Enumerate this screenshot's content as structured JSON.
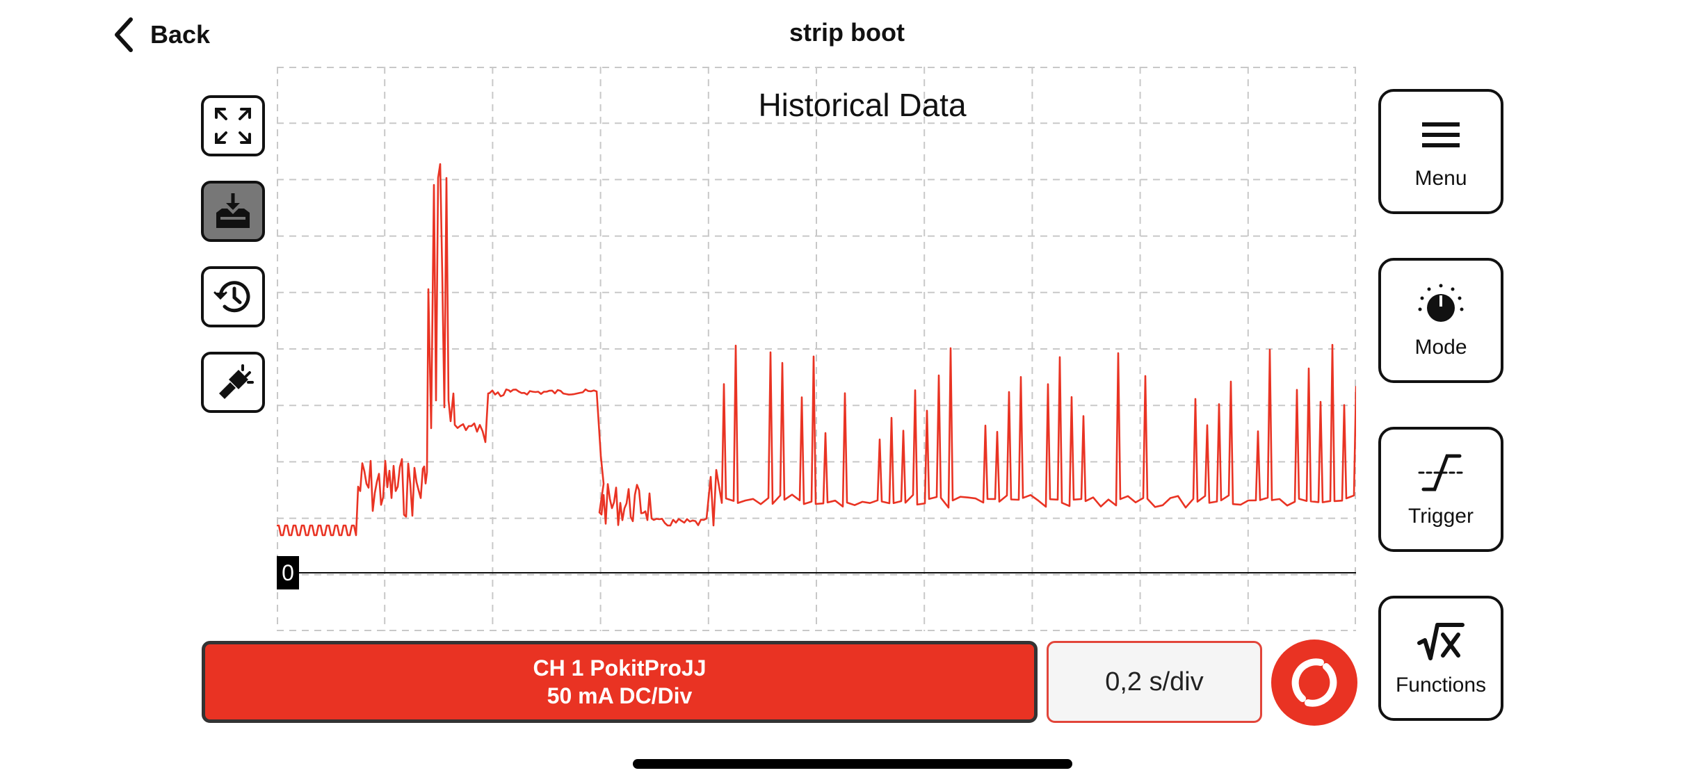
{
  "nav": {
    "back_label": "Back",
    "title": "strip boot"
  },
  "left_tools": [
    {
      "name": "expand-icon"
    },
    {
      "name": "download-icon",
      "active": true
    },
    {
      "name": "history-icon"
    },
    {
      "name": "flashlight-icon"
    }
  ],
  "plot": {
    "title": "Historical Data",
    "zero_label": "0",
    "trace_color": "#e93323",
    "x_divisions": 10,
    "y_divisions": 10
  },
  "right_buttons": {
    "menu_label": "Menu",
    "mode_label": "Mode",
    "trigger_label": "Trigger",
    "functions_label": "Functions"
  },
  "channel": {
    "line1": "CH 1 PokitProJJ",
    "line2": "50 mA DC/Div"
  },
  "timebase": {
    "label": "0,2 s/div"
  },
  "colors": {
    "accent": "#e93323",
    "border": "#111111"
  }
}
